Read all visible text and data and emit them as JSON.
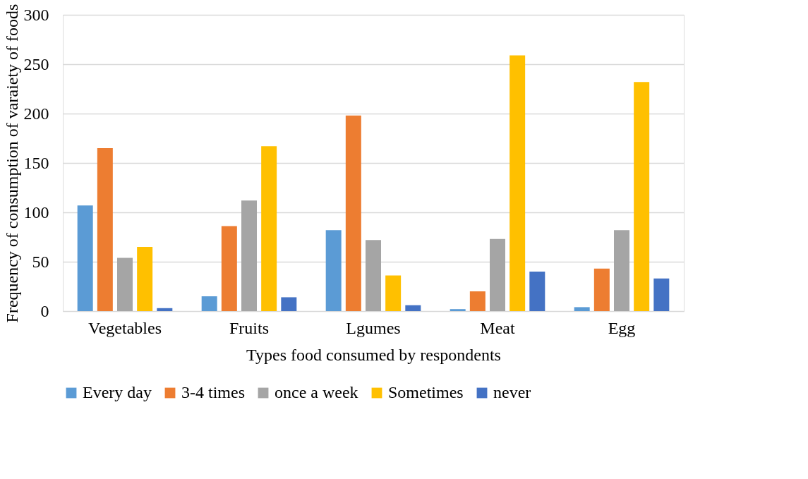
{
  "chart_data": {
    "type": "bar",
    "xlabel": "Types food consumed by respondents",
    "ylabel": "Frequency of consumption of varaiety of foods",
    "categories": [
      "Vegetables",
      "Fruits",
      "Lgumes",
      "Meat",
      "Egg"
    ],
    "series": [
      {
        "name": "Every day",
        "color": "#5b9bd5",
        "values": [
          107,
          15,
          82,
          2,
          4
        ]
      },
      {
        "name": "3-4 times",
        "color": "#ed7d31",
        "values": [
          165,
          86,
          198,
          20,
          43
        ]
      },
      {
        "name": "once a week",
        "color": "#a5a5a5",
        "values": [
          54,
          112,
          72,
          73,
          82
        ]
      },
      {
        "name": "Sometimes",
        "color": "#ffc000",
        "values": [
          65,
          167,
          36,
          259,
          232
        ]
      },
      {
        "name": "never",
        "color": "#4472c4",
        "values": [
          3,
          14,
          6,
          40,
          33
        ]
      }
    ],
    "ylim": [
      0,
      300
    ],
    "yticks": [
      0,
      50,
      100,
      150,
      200,
      250,
      300
    ],
    "grid": "y",
    "legend": "bottom"
  }
}
